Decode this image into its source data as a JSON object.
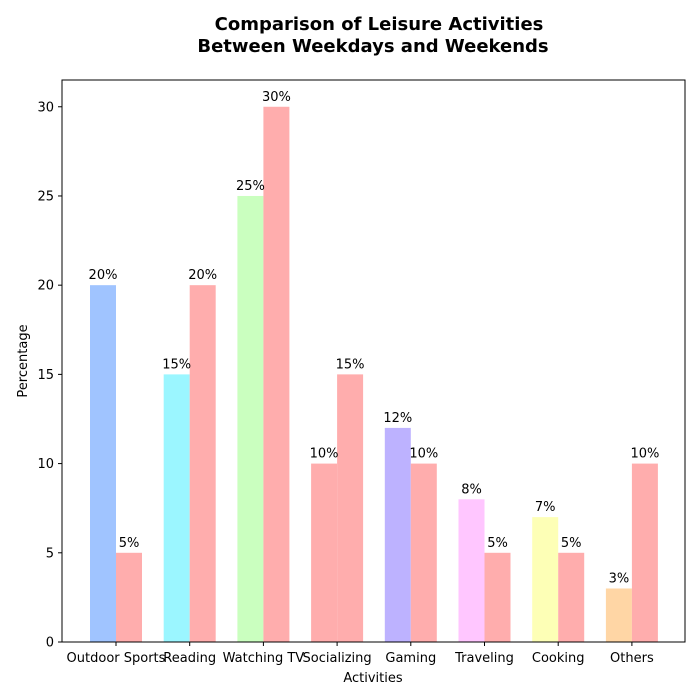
{
  "chart_data": {
    "type": "bar",
    "title_lines": [
      "Comparison of Leisure Activities",
      "Between Weekdays and Weekends"
    ],
    "xlabel": "Activities",
    "ylabel": "Percentage",
    "categories": [
      "Outdoor Sports",
      "Reading",
      "Watching TV",
      "Socializing",
      "Gaming",
      "Traveling",
      "Cooking",
      "Others"
    ],
    "series": [
      {
        "values": [
          20,
          15,
          25,
          10,
          12,
          8,
          7,
          3
        ],
        "colors": [
          "#a0c4ff",
          "#9bf6ff",
          "#caffbf",
          "#ffadad",
          "#bdb2ff",
          "#ffc6ff",
          "#fdffb6",
          "#ffd6a5"
        ]
      },
      {
        "values": [
          5,
          20,
          30,
          15,
          10,
          5,
          5,
          10
        ],
        "color": "#ffadad"
      }
    ],
    "value_suffix": "%",
    "ylim": [
      0,
      31.5
    ],
    "yticks": [
      0,
      5,
      10,
      15,
      20,
      25,
      30
    ],
    "grid": false,
    "legend": "none"
  }
}
